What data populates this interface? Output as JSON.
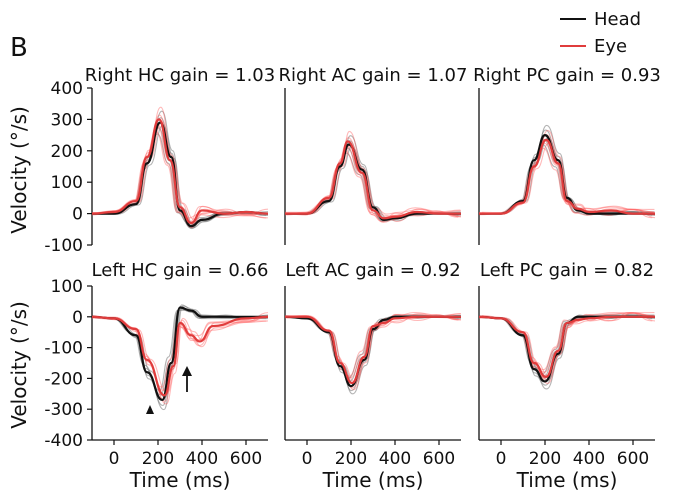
{
  "figure": {
    "panel_letter": "B",
    "legend": [
      {
        "label": "Head",
        "color": "#111111"
      },
      {
        "label": "Eye",
        "color": "#e03c3c"
      }
    ],
    "annotations": {
      "arrowhead_label": "arrowhead",
      "arrow_label": "arrow"
    }
  },
  "chart_data": [
    {
      "type": "line",
      "row": 0,
      "col": 0,
      "direction": 1,
      "title": "Right HC gain = 1.03",
      "ylabel": "Velocity (°/s)",
      "xlabel": "",
      "xlim": [
        -100,
        700
      ],
      "ylim": [
        -100,
        400
      ],
      "yticks": [
        -100,
        0,
        100,
        200,
        300,
        400
      ],
      "xticks": [
        0,
        200,
        400,
        600
      ],
      "series": [
        {
          "name": "Head",
          "color": "#111111",
          "peak": 290,
          "peak_t": 210,
          "x": [
            -100,
            0,
            100,
            150,
            210,
            260,
            300,
            350,
            400,
            500,
            600,
            700
          ],
          "y": [
            0,
            0,
            30,
            160,
            290,
            180,
            10,
            -40,
            -20,
            0,
            5,
            0
          ]
        },
        {
          "name": "Eye",
          "color": "#e03c3c",
          "peak": 300,
          "peak_t": 205,
          "x": [
            -100,
            0,
            100,
            150,
            205,
            255,
            300,
            350,
            400,
            500,
            600,
            700
          ],
          "y": [
            0,
            5,
            40,
            180,
            300,
            170,
            20,
            -30,
            10,
            0,
            5,
            0
          ]
        }
      ]
    },
    {
      "type": "line",
      "row": 0,
      "col": 1,
      "direction": 1,
      "title": "Right AC gain = 1.07",
      "ylabel": "",
      "xlabel": "",
      "xlim": [
        -100,
        700
      ],
      "ylim": [
        -100,
        400
      ],
      "xticks": [
        0,
        200,
        400,
        600
      ],
      "series": [
        {
          "name": "Head",
          "color": "#111111",
          "peak": 220,
          "peak_t": 190,
          "x": [
            -100,
            0,
            100,
            150,
            190,
            250,
            300,
            350,
            400,
            500,
            600,
            700
          ],
          "y": [
            0,
            0,
            40,
            150,
            220,
            140,
            20,
            -20,
            -15,
            0,
            0,
            0
          ]
        },
        {
          "name": "Eye",
          "color": "#e03c3c",
          "peak": 230,
          "peak_t": 185,
          "x": [
            -100,
            0,
            100,
            150,
            185,
            250,
            300,
            350,
            400,
            500,
            600,
            700
          ],
          "y": [
            0,
            0,
            50,
            160,
            230,
            130,
            10,
            -15,
            -10,
            5,
            0,
            0
          ]
        }
      ]
    },
    {
      "type": "line",
      "row": 0,
      "col": 2,
      "direction": 1,
      "title": "Right PC gain = 0.93",
      "ylabel": "",
      "xlabel": "",
      "xlim": [
        -100,
        700
      ],
      "ylim": [
        -100,
        400
      ],
      "xticks": [
        0,
        200,
        400,
        600
      ],
      "series": [
        {
          "name": "Head",
          "color": "#111111",
          "peak": 250,
          "peak_t": 200,
          "x": [
            -100,
            0,
            100,
            150,
            200,
            260,
            300,
            350,
            400,
            500,
            600,
            700
          ],
          "y": [
            0,
            0,
            40,
            170,
            250,
            170,
            50,
            10,
            0,
            0,
            0,
            0
          ]
        },
        {
          "name": "Eye",
          "color": "#e03c3c",
          "peak": 235,
          "peak_t": 205,
          "x": [
            -100,
            0,
            100,
            150,
            205,
            260,
            300,
            350,
            400,
            500,
            600,
            700
          ],
          "y": [
            0,
            0,
            35,
            150,
            235,
            160,
            40,
            15,
            5,
            10,
            0,
            0
          ]
        }
      ]
    },
    {
      "type": "line",
      "row": 1,
      "col": 0,
      "direction": -1,
      "title": "Left HC gain = 0.66",
      "ylabel": "Velocity (°/s)",
      "xlabel": "Time (ms)",
      "xlim": [
        -100,
        700
      ],
      "ylim": [
        -400,
        100
      ],
      "yticks": [
        -400,
        -300,
        -200,
        -100,
        0,
        100
      ],
      "xticks": [
        0,
        200,
        400,
        600
      ],
      "series": [
        {
          "name": "Head",
          "color": "#111111",
          "peak": -270,
          "peak_t": 220,
          "x": [
            -100,
            0,
            100,
            150,
            220,
            260,
            300,
            350,
            400,
            500,
            600,
            700
          ],
          "y": [
            0,
            -5,
            -60,
            -180,
            -270,
            -150,
            30,
            20,
            0,
            0,
            0,
            0
          ]
        },
        {
          "name": "Eye",
          "color": "#e03c3c",
          "peak": -255,
          "peak_t": 230,
          "x": [
            -100,
            0,
            100,
            150,
            230,
            270,
            300,
            350,
            390,
            450,
            600,
            700
          ],
          "y": [
            0,
            -5,
            -40,
            -140,
            -255,
            -160,
            -20,
            -60,
            -80,
            -30,
            -5,
            0
          ]
        }
      ]
    },
    {
      "type": "line",
      "row": 1,
      "col": 1,
      "direction": -1,
      "title": "Left AC gain = 0.92",
      "ylabel": "",
      "xlabel": "Time (ms)",
      "xlim": [
        -100,
        700
      ],
      "ylim": [
        -400,
        100
      ],
      "xticks": [
        0,
        200,
        400,
        600
      ],
      "series": [
        {
          "name": "Head",
          "color": "#111111",
          "peak": -225,
          "peak_t": 200,
          "x": [
            -100,
            0,
            100,
            150,
            200,
            260,
            300,
            350,
            400,
            500,
            600,
            700
          ],
          "y": [
            0,
            -5,
            -50,
            -160,
            -225,
            -140,
            -40,
            -10,
            0,
            0,
            0,
            0
          ]
        },
        {
          "name": "Eye",
          "color": "#e03c3c",
          "peak": -215,
          "peak_t": 205,
          "x": [
            -100,
            0,
            100,
            150,
            205,
            260,
            300,
            350,
            400,
            500,
            600,
            700
          ],
          "y": [
            0,
            0,
            -45,
            -150,
            -215,
            -130,
            -30,
            -20,
            -5,
            0,
            0,
            0
          ]
        }
      ]
    },
    {
      "type": "line",
      "row": 1,
      "col": 2,
      "direction": -1,
      "title": "Left PC gain = 0.82",
      "ylabel": "",
      "xlabel": "Time (ms)",
      "xlim": [
        -100,
        700
      ],
      "ylim": [
        -400,
        100
      ],
      "xticks": [
        0,
        200,
        400,
        600
      ],
      "series": [
        {
          "name": "Head",
          "color": "#111111",
          "peak": -210,
          "peak_t": 200,
          "x": [
            -100,
            0,
            100,
            150,
            200,
            260,
            300,
            350,
            400,
            500,
            600,
            700
          ],
          "y": [
            0,
            -5,
            -60,
            -170,
            -210,
            -120,
            -20,
            0,
            0,
            0,
            0,
            0
          ]
        },
        {
          "name": "Eye",
          "color": "#e03c3c",
          "peak": -195,
          "peak_t": 205,
          "x": [
            -100,
            0,
            100,
            150,
            205,
            260,
            300,
            350,
            400,
            500,
            600,
            700
          ],
          "y": [
            0,
            -5,
            -50,
            -150,
            -195,
            -110,
            -20,
            -10,
            -5,
            0,
            0,
            0
          ]
        }
      ]
    }
  ]
}
